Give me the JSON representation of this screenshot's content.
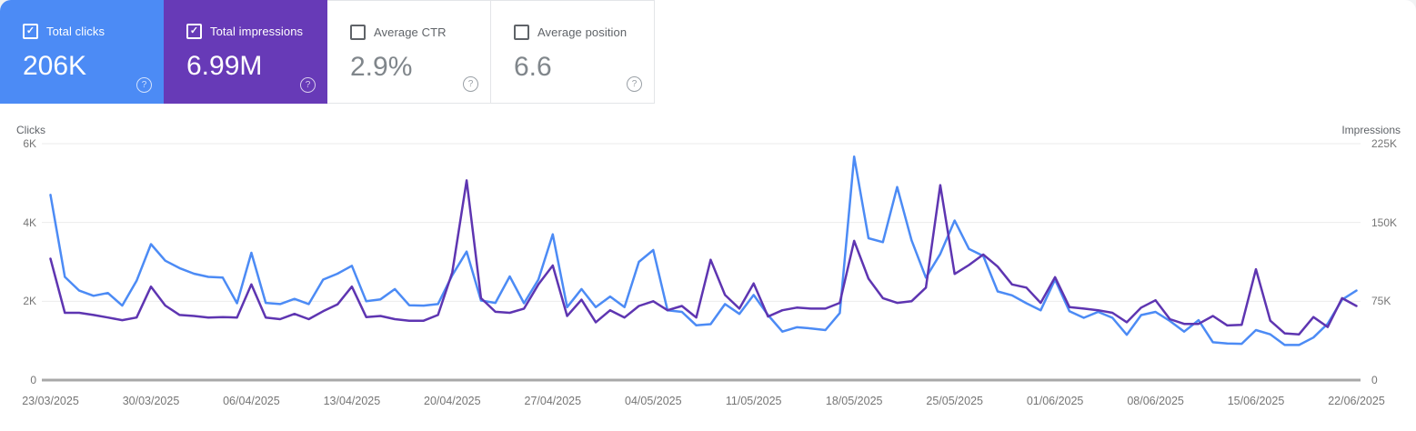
{
  "cards": [
    {
      "id": "total-clicks",
      "label": "Total clicks",
      "value": "206K",
      "checked": true,
      "bg": "#4c8bf5"
    },
    {
      "id": "total-impressions",
      "label": "Total impressions",
      "value": "6.99M",
      "checked": true,
      "bg": "#673ab7"
    },
    {
      "id": "average-ctr",
      "label": "Average CTR",
      "value": "2.9%",
      "checked": false,
      "bg": ""
    },
    {
      "id": "average-position",
      "label": "Average position",
      "value": "6.6",
      "checked": false,
      "bg": ""
    }
  ],
  "chart_data": {
    "type": "line",
    "frequency": "daily",
    "x_start_date": "23/03/2025",
    "x_end_date": "22/06/2025",
    "num_points": 92,
    "x_ticks": [
      "23/03/2025",
      "30/03/2025",
      "06/04/2025",
      "13/04/2025",
      "20/04/2025",
      "27/04/2025",
      "04/05/2025",
      "11/05/2025",
      "18/05/2025",
      "25/05/2025",
      "01/06/2025",
      "08/06/2025",
      "15/06/2025",
      "22/06/2025"
    ],
    "y_left": {
      "title": "Clicks",
      "max": 6000,
      "ticks": [
        {
          "label": "6K",
          "value": 6000
        },
        {
          "label": "4K",
          "value": 4000
        },
        {
          "label": "2K",
          "value": 2000
        },
        {
          "label": "0",
          "value": 0
        }
      ]
    },
    "y_right": {
      "title": "Impressions",
      "max": 225000,
      "ticks": [
        {
          "label": "225K",
          "value": 225000
        },
        {
          "label": "150K",
          "value": 150000
        },
        {
          "label": "75K",
          "value": 75000
        },
        {
          "label": "0",
          "value": 0
        }
      ]
    },
    "grid": true,
    "legend_position": "none",
    "series": [
      {
        "name": "Clicks",
        "axis": "left",
        "color": "#4c8bf5",
        "values": [
          4700,
          2620,
          2270,
          2140,
          2210,
          1890,
          2520,
          3450,
          3030,
          2840,
          2700,
          2620,
          2600,
          1950,
          3230,
          1960,
          1930,
          2060,
          1930,
          2550,
          2700,
          2900,
          2000,
          2050,
          2310,
          1900,
          1890,
          1930,
          2660,
          3260,
          2020,
          1960,
          2630,
          1950,
          2550,
          3700,
          1850,
          2310,
          1850,
          2120,
          1850,
          3000,
          3300,
          1770,
          1730,
          1390,
          1420,
          1930,
          1680,
          2160,
          1650,
          1230,
          1340,
          1310,
          1270,
          1700,
          5670,
          3600,
          3500,
          4900,
          3550,
          2600,
          3200,
          4050,
          3330,
          3150,
          2250,
          2150,
          1950,
          1770,
          2550,
          1750,
          1580,
          1730,
          1580,
          1150,
          1650,
          1730,
          1500,
          1230,
          1520,
          960,
          930,
          920,
          1270,
          1160,
          890,
          890,
          1080,
          1430,
          2040,
          2270
        ]
      },
      {
        "name": "Impressions",
        "axis": "right",
        "color": "#5e35b1",
        "values": [
          115500,
          64000,
          64000,
          62000,
          59500,
          57000,
          59500,
          89000,
          71000,
          62000,
          61000,
          59500,
          60000,
          59500,
          91000,
          59500,
          58000,
          63000,
          58000,
          65500,
          72000,
          89000,
          60000,
          61000,
          58000,
          56500,
          56500,
          62000,
          102500,
          190000,
          78000,
          65000,
          64000,
          68000,
          91000,
          109000,
          61000,
          76500,
          55000,
          66500,
          59500,
          70500,
          75000,
          66500,
          70500,
          59500,
          114500,
          81000,
          68000,
          92000,
          60500,
          66500,
          69000,
          68000,
          68000,
          73500,
          132500,
          96500,
          78000,
          73500,
          75000,
          88000,
          185500,
          101000,
          109500,
          119500,
          108000,
          91000,
          88000,
          73500,
          98000,
          69500,
          68000,
          66500,
          64000,
          55000,
          69000,
          76000,
          58000,
          53500,
          53500,
          61000,
          52000,
          52500,
          105500,
          56500,
          44500,
          43500,
          60000,
          50500,
          78000,
          70500
        ]
      }
    ]
  }
}
